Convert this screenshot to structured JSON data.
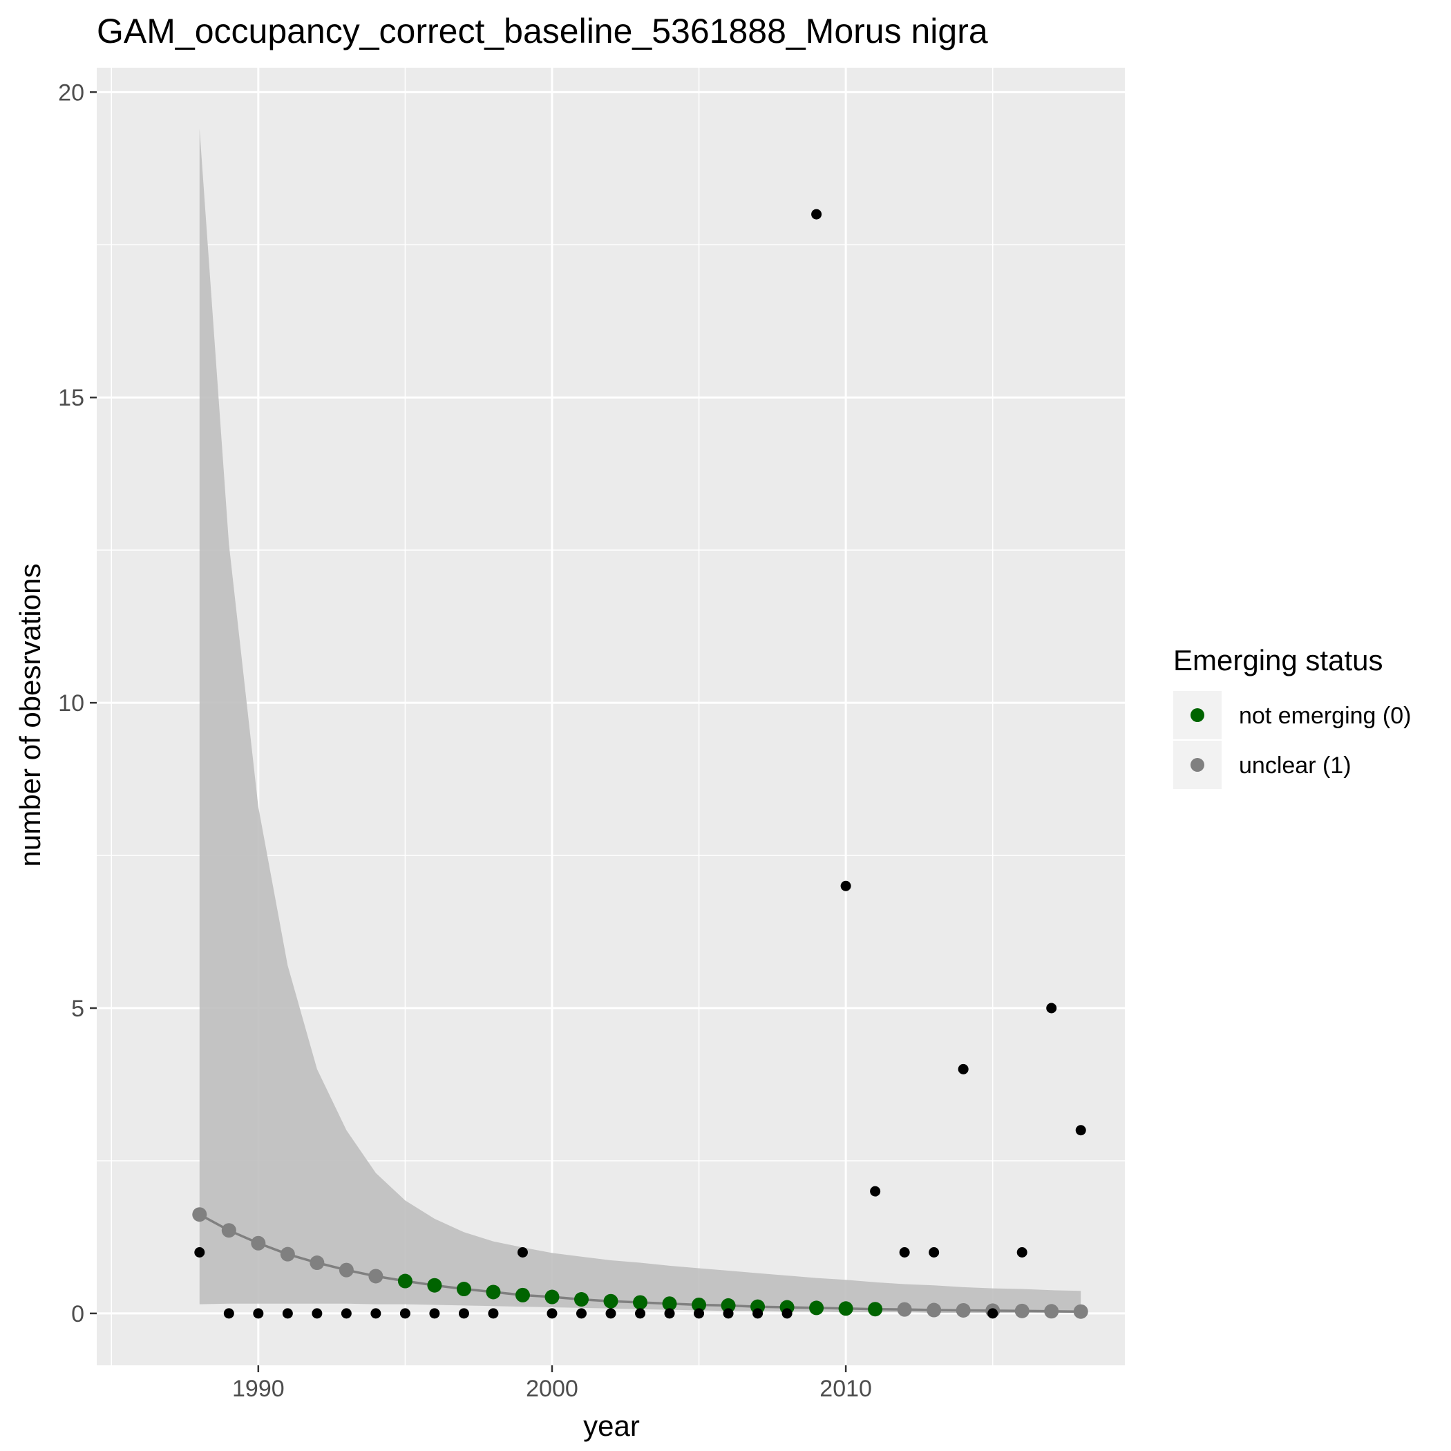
{
  "chart_data": {
    "type": "scatter",
    "title": "GAM_occupancy_correct_baseline_5361888_Morus nigra",
    "xlabel": "year",
    "ylabel": "number of obesrvations",
    "xlim": [
      1984.5,
      2019.5
    ],
    "ylim": [
      -0.85,
      20.4
    ],
    "x_ticks": [
      1990,
      2000,
      2010
    ],
    "y_ticks": [
      0,
      5,
      10,
      15,
      20
    ],
    "grid": true,
    "legend": {
      "title": "Emerging status",
      "position": "right",
      "entries": [
        {
          "label": "not emerging (0)",
          "color": "#006400"
        },
        {
          "label": "unclear (1)",
          "color": "#808080"
        }
      ]
    },
    "colors": {
      "observed": "#000000",
      "not_emerging": "#006400",
      "unclear": "#808080",
      "ribbon": "#bfbfbf",
      "panel": "#ebebeb",
      "grid": "#ffffff"
    },
    "observed": {
      "name": "observations",
      "x": [
        1988,
        1989,
        1990,
        1991,
        1992,
        1993,
        1994,
        1995,
        1996,
        1997,
        1998,
        1999,
        2000,
        2001,
        2002,
        2003,
        2004,
        2005,
        2006,
        2007,
        2008,
        2009,
        2010,
        2011,
        2012,
        2013,
        2014,
        2015,
        2016,
        2017,
        2018
      ],
      "y": [
        1,
        0,
        0,
        0,
        0,
        0,
        0,
        0,
        0,
        0,
        0,
        1,
        0,
        0,
        0,
        0,
        0,
        0,
        0,
        0,
        0,
        18,
        7,
        2,
        1,
        1,
        4,
        0,
        1,
        5,
        3
      ]
    },
    "fitted": {
      "name": "GAM fit",
      "x": [
        1988,
        1989,
        1990,
        1991,
        1992,
        1993,
        1994,
        1995,
        1996,
        1997,
        1998,
        1999,
        2000,
        2001,
        2002,
        2003,
        2004,
        2005,
        2006,
        2007,
        2008,
        2009,
        2010,
        2011,
        2012,
        2013,
        2014,
        2015,
        2016,
        2017,
        2018
      ],
      "y": [
        1.62,
        1.36,
        1.15,
        0.97,
        0.83,
        0.71,
        0.61,
        0.53,
        0.46,
        0.4,
        0.35,
        0.3,
        0.27,
        0.23,
        0.2,
        0.18,
        0.16,
        0.14,
        0.13,
        0.11,
        0.1,
        0.09,
        0.08,
        0.07,
        0.065,
        0.055,
        0.05,
        0.045,
        0.04,
        0.035,
        0.03
      ],
      "status": [
        1,
        1,
        1,
        1,
        1,
        1,
        1,
        0,
        0,
        0,
        0,
        0,
        0,
        0,
        0,
        0,
        0,
        0,
        0,
        0,
        0,
        0,
        0,
        0,
        1,
        1,
        1,
        1,
        1,
        1,
        1
      ],
      "lower": [
        0.15,
        0.16,
        0.16,
        0.16,
        0.16,
        0.16,
        0.15,
        0.15,
        0.14,
        0.13,
        0.12,
        0.11,
        0.1,
        0.09,
        0.08,
        0.07,
        0.06,
        0.05,
        0.04,
        0.04,
        0.03,
        0.03,
        0.02,
        0.02,
        0.02,
        0.01,
        0.01,
        0.01,
        0.01,
        0.01,
        0.01
      ],
      "upper": [
        19.4,
        12.6,
        8.3,
        5.7,
        4.0,
        3.0,
        2.3,
        1.85,
        1.55,
        1.33,
        1.18,
        1.08,
        0.99,
        0.93,
        0.87,
        0.83,
        0.78,
        0.74,
        0.7,
        0.66,
        0.62,
        0.58,
        0.55,
        0.51,
        0.48,
        0.46,
        0.43,
        0.41,
        0.4,
        0.38,
        0.37
      ]
    }
  }
}
